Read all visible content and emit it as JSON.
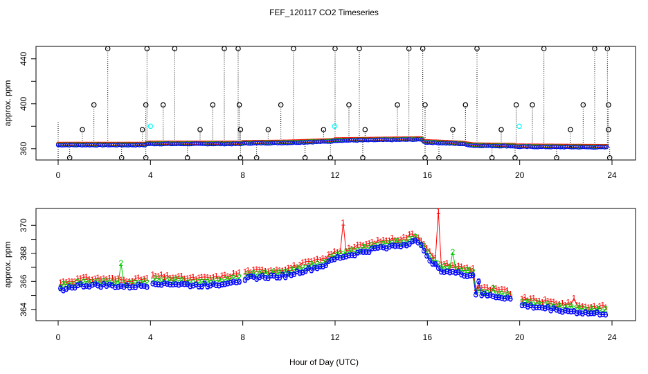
{
  "title": "FEF_120117  CO2 Timeseries",
  "xlabel": "Hour of Day (UTC)",
  "colors": {
    "s1": "#ff0000",
    "s2": "#00cc00",
    "s3": "#0000ff",
    "cyan": "#00ffff",
    "black": "#000000"
  },
  "chart_data": [
    {
      "type": "scatter",
      "panel": "top",
      "ylabel": "approx. ppm",
      "xlim": [
        0,
        24
      ],
      "ylim": [
        350,
        451
      ],
      "xticks": [
        "0",
        "4",
        "8",
        "12",
        "16",
        "20",
        "24"
      ],
      "yticks": [
        "360",
        "400",
        "440"
      ],
      "baseline": [
        [
          0,
          363.5
        ],
        [
          3.8,
          363.5
        ],
        [
          3.85,
          364.5
        ],
        [
          7.9,
          364.5
        ],
        [
          8.0,
          365
        ],
        [
          10.0,
          365.5
        ],
        [
          11.9,
          366.8
        ],
        [
          12.0,
          367.5
        ],
        [
          15.8,
          368.5
        ],
        [
          15.85,
          366
        ],
        [
          17.5,
          364.5
        ],
        [
          18.0,
          363
        ],
        [
          19.8,
          362.5
        ],
        [
          19.85,
          362
        ],
        [
          24,
          361.5
        ]
      ],
      "spikes_high": [
        2.15,
        3.85,
        5.05,
        7.2,
        7.8,
        10.2,
        12.0,
        13.05,
        15.2,
        15.8,
        18.15,
        21.05,
        23.25,
        23.8
      ],
      "spikes_mid": [
        1.55,
        3.8,
        4.55,
        6.7,
        7.85,
        9.65,
        12.6,
        14.7,
        15.9,
        17.65,
        19.85,
        20.55,
        22.75,
        23.85
      ],
      "spikes_low": [
        1.05,
        3.65,
        6.15,
        7.9,
        9.1,
        11.5,
        13.3,
        17.1,
        19.2,
        22.2,
        23.85
      ],
      "dips": [
        0.5,
        2.75,
        3.8,
        5.6,
        7.9,
        8.6,
        10.7,
        11.8,
        13.2,
        15.9,
        16.5,
        18.8,
        19.8,
        21.6,
        23.9
      ],
      "cyan_points": [
        [
          4.0,
          380
        ],
        [
          11.98,
          380
        ],
        [
          19.98,
          380
        ]
      ]
    },
    {
      "type": "line",
      "panel": "bottom",
      "ylabel": "approx. ppm",
      "xlim": [
        0,
        24
      ],
      "ylim": [
        363.2,
        371.2
      ],
      "xticks": [
        "0",
        "4",
        "8",
        "12",
        "16",
        "20",
        "24"
      ],
      "yticks": [
        "364",
        "366",
        "368",
        "370"
      ],
      "series": [
        {
          "name": "1",
          "color": "#ff0000"
        },
        {
          "name": "2",
          "color": "#00cc00"
        },
        {
          "name": "3",
          "color": "#0000ff"
        }
      ],
      "base_curve": [
        [
          0,
          365.4
        ],
        [
          1,
          365.7
        ],
        [
          2,
          365.7
        ],
        [
          3,
          365.6
        ],
        [
          3.9,
          365.7
        ],
        [
          4.05,
          365.9
        ],
        [
          5,
          365.8
        ],
        [
          6,
          365.7
        ],
        [
          7,
          365.8
        ],
        [
          7.9,
          366.1
        ],
        [
          8.05,
          366.2
        ],
        [
          9,
          366.3
        ],
        [
          9.9,
          366.4
        ],
        [
          10.5,
          366.7
        ],
        [
          11.5,
          367.1
        ],
        [
          12,
          367.6
        ],
        [
          13,
          368.0
        ],
        [
          14,
          368.4
        ],
        [
          15,
          368.6
        ],
        [
          15.4,
          368.9
        ],
        [
          15.8,
          368.4
        ],
        [
          16.2,
          367.3
        ],
        [
          16.6,
          366.8
        ],
        [
          17.5,
          366.5
        ],
        [
          18.0,
          366.4
        ],
        [
          18.05,
          365.1
        ],
        [
          19.5,
          364.8
        ],
        [
          20.0,
          364.3
        ],
        [
          21,
          364.1
        ],
        [
          22,
          363.9
        ],
        [
          23,
          363.7
        ],
        [
          23.8,
          363.7
        ]
      ],
      "offset_1": 0.5,
      "offset_2": 0.25,
      "offset_3": 0.0,
      "spikes_1": [
        [
          12.3,
          370.2
        ],
        [
          16.5,
          371.0
        ],
        [
          22.3,
          364.8
        ]
      ],
      "spikes_2": [
        [
          2.75,
          367.3
        ],
        [
          17.1,
          368.1
        ],
        [
          18.8,
          365.5
        ]
      ],
      "spikes_3": [
        [
          18.2,
          366.0
        ]
      ]
    }
  ]
}
